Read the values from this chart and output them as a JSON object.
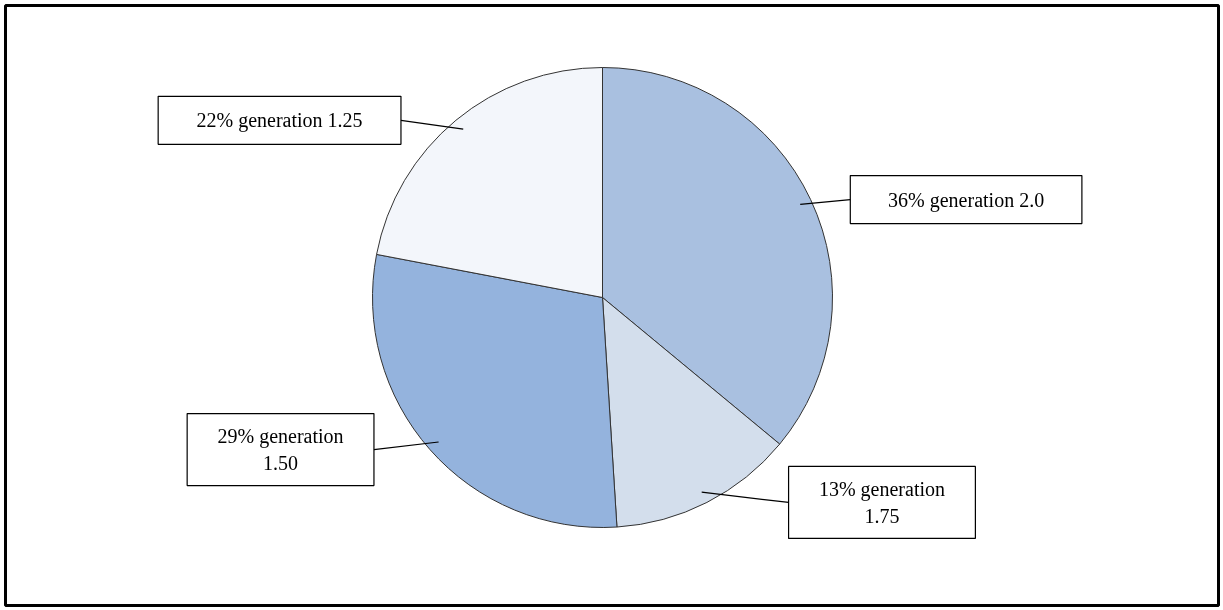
{
  "chart_data": {
    "type": "pie",
    "categories": [
      "generation 2.0",
      "generation 1.75",
      "generation 1.50",
      "generation 1.25"
    ],
    "values": [
      36,
      13,
      29,
      22
    ],
    "value_labels": [
      "36%",
      "13%",
      "29%",
      "22%"
    ],
    "colors": [
      "#a9c0e0",
      "#d3deec",
      "#94b3dd",
      "#f3f6fb"
    ]
  }
}
